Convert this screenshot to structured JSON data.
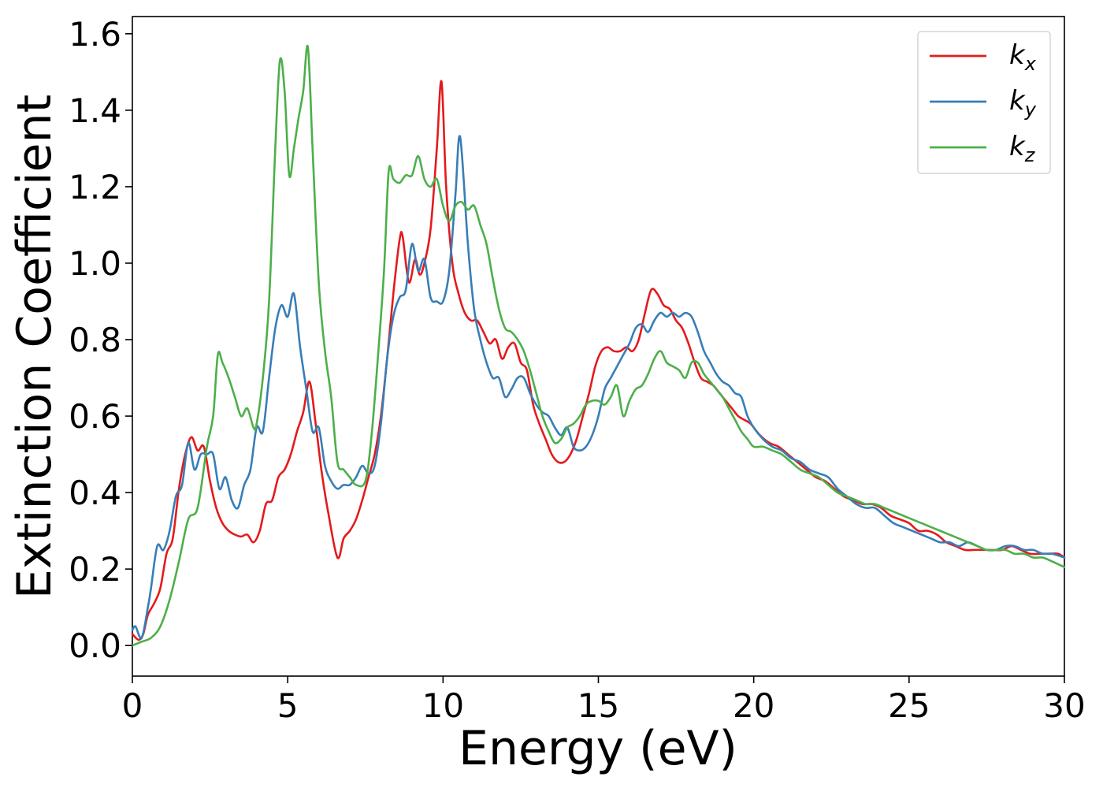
{
  "chart_data": {
    "type": "line",
    "title": "",
    "xlabel": "Energy (eV)",
    "ylabel": "Extinction Coefficient",
    "xlim": [
      0,
      30
    ],
    "ylim": [
      -0.08,
      1.645
    ],
    "xticks": [
      0,
      5,
      10,
      15,
      20,
      25,
      30
    ],
    "yticks": [
      0.0,
      0.2,
      0.4,
      0.6,
      0.8,
      1.0,
      1.2,
      1.4,
      1.6
    ],
    "xtick_labels": [
      "0",
      "5",
      "10",
      "15",
      "20",
      "25",
      "30"
    ],
    "ytick_labels": [
      "0.0",
      "0.2",
      "0.4",
      "0.6",
      "0.8",
      "1.0",
      "1.2",
      "1.4",
      "1.6"
    ],
    "grid": false,
    "legend_position": "top-right",
    "series": [
      {
        "name": "k",
        "subscript": "x",
        "color": "#e41a1c",
        "x": [
          0,
          0.2,
          0.35,
          0.5,
          0.7,
          0.9,
          1.1,
          1.3,
          1.5,
          1.7,
          1.9,
          2.1,
          2.3,
          2.5,
          2.7,
          2.9,
          3.1,
          3.3,
          3.5,
          3.7,
          3.9,
          4.1,
          4.3,
          4.5,
          4.7,
          4.9,
          5.1,
          5.3,
          5.5,
          5.7,
          5.9,
          6.1,
          6.3,
          6.6,
          6.8,
          7.0,
          7.2,
          7.4,
          7.6,
          7.8,
          8.0,
          8.2,
          8.4,
          8.6,
          8.7,
          8.9,
          9.1,
          9.25,
          9.4,
          9.6,
          9.8,
          9.95,
          10.1,
          10.3,
          10.5,
          10.7,
          10.9,
          11.1,
          11.3,
          11.5,
          11.7,
          11.9,
          12.1,
          12.3,
          12.5,
          12.7,
          12.9,
          13.1,
          13.3,
          13.5,
          13.7,
          13.9,
          14.1,
          14.3,
          14.5,
          14.7,
          14.9,
          15.1,
          15.3,
          15.5,
          15.7,
          15.9,
          16.1,
          16.3,
          16.5,
          16.7,
          16.9,
          17.1,
          17.3,
          17.5,
          17.7,
          17.9,
          18.1,
          18.3,
          18.5,
          18.7,
          18.9,
          19.1,
          19.3,
          19.5,
          19.7,
          19.9,
          20.2,
          20.5,
          20.8,
          21.1,
          21.4,
          21.7,
          22.0,
          22.3,
          22.6,
          22.9,
          23.2,
          23.5,
          23.8,
          24.1,
          24.4,
          24.7,
          25.0,
          25.3,
          25.6,
          25.9,
          26.2,
          26.5,
          26.8,
          27.1,
          27.4,
          27.7,
          28.0,
          28.3,
          28.6,
          28.9,
          29.2,
          29.5,
          29.8,
          30.0
        ],
        "y": [
          0.03,
          0.015,
          0.03,
          0.08,
          0.11,
          0.15,
          0.24,
          0.28,
          0.41,
          0.5,
          0.545,
          0.51,
          0.52,
          0.43,
          0.36,
          0.32,
          0.3,
          0.29,
          0.285,
          0.29,
          0.27,
          0.3,
          0.37,
          0.38,
          0.44,
          0.46,
          0.5,
          0.56,
          0.61,
          0.69,
          0.58,
          0.45,
          0.35,
          0.23,
          0.28,
          0.3,
          0.33,
          0.38,
          0.44,
          0.5,
          0.6,
          0.75,
          0.92,
          1.06,
          1.07,
          0.95,
          1.01,
          0.97,
          1.0,
          1.09,
          1.3,
          1.475,
          1.2,
          1.0,
          0.92,
          0.87,
          0.85,
          0.85,
          0.82,
          0.79,
          0.8,
          0.75,
          0.78,
          0.79,
          0.74,
          0.72,
          0.63,
          0.58,
          0.54,
          0.5,
          0.48,
          0.48,
          0.5,
          0.54,
          0.6,
          0.66,
          0.73,
          0.77,
          0.78,
          0.77,
          0.77,
          0.78,
          0.77,
          0.8,
          0.87,
          0.93,
          0.92,
          0.89,
          0.88,
          0.85,
          0.83,
          0.79,
          0.74,
          0.7,
          0.69,
          0.68,
          0.66,
          0.64,
          0.62,
          0.6,
          0.59,
          0.58,
          0.55,
          0.53,
          0.52,
          0.5,
          0.48,
          0.46,
          0.44,
          0.43,
          0.41,
          0.39,
          0.38,
          0.37,
          0.37,
          0.36,
          0.34,
          0.33,
          0.32,
          0.3,
          0.3,
          0.29,
          0.27,
          0.26,
          0.25,
          0.25,
          0.25,
          0.25,
          0.25,
          0.26,
          0.25,
          0.24,
          0.24,
          0.24,
          0.24,
          0.23
        ]
      },
      {
        "name": "k",
        "subscript": "y",
        "color": "#377eb8",
        "x": [
          0,
          0.1,
          0.3,
          0.5,
          0.6,
          0.8,
          1.0,
          1.2,
          1.4,
          1.6,
          1.8,
          2.0,
          2.2,
          2.4,
          2.6,
          2.8,
          3.0,
          3.2,
          3.4,
          3.6,
          3.8,
          4.0,
          4.2,
          4.4,
          4.6,
          4.8,
          5.0,
          5.2,
          5.4,
          5.6,
          5.8,
          6.0,
          6.2,
          6.4,
          6.6,
          6.8,
          7.0,
          7.2,
          7.4,
          7.6,
          7.8,
          8.0,
          8.2,
          8.4,
          8.6,
          8.8,
          9.0,
          9.2,
          9.4,
          9.6,
          9.8,
          10.0,
          10.2,
          10.4,
          10.55,
          10.8,
          11.0,
          11.2,
          11.4,
          11.6,
          11.8,
          12.0,
          12.2,
          12.4,
          12.6,
          12.8,
          13.0,
          13.2,
          13.4,
          13.6,
          13.8,
          14.0,
          14.2,
          14.4,
          14.6,
          14.8,
          15.0,
          15.2,
          15.4,
          15.6,
          15.8,
          16.0,
          16.2,
          16.4,
          16.6,
          16.8,
          17.0,
          17.2,
          17.4,
          17.6,
          17.8,
          18.0,
          18.2,
          18.4,
          18.6,
          18.8,
          19.0,
          19.2,
          19.4,
          19.6,
          19.8,
          20.0,
          20.3,
          20.6,
          20.9,
          21.2,
          21.5,
          21.8,
          22.1,
          22.4,
          22.7,
          23.0,
          23.3,
          23.6,
          23.9,
          24.2,
          24.5,
          24.8,
          25.1,
          25.4,
          25.7,
          26.0,
          26.3,
          26.6,
          26.9,
          27.2,
          27.5,
          27.8,
          28.1,
          28.4,
          28.7,
          29.0,
          29.3,
          29.6,
          30.0
        ],
        "y": [
          0.04,
          0.05,
          0.02,
          0.1,
          0.15,
          0.26,
          0.25,
          0.3,
          0.39,
          0.42,
          0.53,
          0.46,
          0.5,
          0.5,
          0.5,
          0.41,
          0.44,
          0.38,
          0.36,
          0.42,
          0.46,
          0.57,
          0.56,
          0.7,
          0.83,
          0.89,
          0.86,
          0.92,
          0.78,
          0.67,
          0.56,
          0.57,
          0.47,
          0.43,
          0.41,
          0.42,
          0.42,
          0.44,
          0.47,
          0.45,
          0.47,
          0.58,
          0.75,
          0.86,
          0.91,
          0.93,
          1.05,
          0.98,
          1.01,
          0.91,
          0.9,
          0.9,
          0.98,
          1.18,
          1.33,
          1.05,
          0.88,
          0.8,
          0.74,
          0.7,
          0.7,
          0.65,
          0.67,
          0.7,
          0.7,
          0.66,
          0.63,
          0.61,
          0.6,
          0.57,
          0.55,
          0.57,
          0.52,
          0.51,
          0.52,
          0.55,
          0.6,
          0.67,
          0.7,
          0.73,
          0.76,
          0.79,
          0.83,
          0.84,
          0.82,
          0.85,
          0.87,
          0.86,
          0.87,
          0.86,
          0.87,
          0.86,
          0.82,
          0.77,
          0.74,
          0.71,
          0.69,
          0.68,
          0.66,
          0.65,
          0.6,
          0.57,
          0.54,
          0.52,
          0.51,
          0.49,
          0.48,
          0.46,
          0.45,
          0.44,
          0.41,
          0.39,
          0.37,
          0.36,
          0.36,
          0.34,
          0.32,
          0.31,
          0.3,
          0.29,
          0.28,
          0.27,
          0.27,
          0.26,
          0.27,
          0.26,
          0.25,
          0.25,
          0.26,
          0.26,
          0.25,
          0.25,
          0.24,
          0.24,
          0.23
        ]
      },
      {
        "name": "k",
        "subscript": "z",
        "color": "#4daf4a",
        "x": [
          0,
          0.3,
          0.6,
          0.9,
          1.2,
          1.5,
          1.8,
          2.1,
          2.4,
          2.6,
          2.75,
          2.9,
          3.1,
          3.3,
          3.5,
          3.7,
          3.9,
          4.0,
          4.2,
          4.4,
          4.6,
          4.75,
          4.9,
          5.05,
          5.2,
          5.35,
          5.5,
          5.65,
          5.8,
          6.0,
          6.2,
          6.4,
          6.6,
          6.8,
          7.0,
          7.2,
          7.5,
          7.7,
          7.9,
          8.1,
          8.25,
          8.4,
          8.6,
          8.8,
          9.0,
          9.2,
          9.4,
          9.6,
          9.8,
          10.0,
          10.2,
          10.4,
          10.6,
          10.8,
          11.0,
          11.2,
          11.4,
          11.6,
          11.8,
          12.0,
          12.2,
          12.4,
          12.6,
          12.8,
          13.0,
          13.2,
          13.4,
          13.6,
          13.8,
          14.0,
          14.2,
          14.4,
          14.6,
          14.8,
          15.0,
          15.2,
          15.4,
          15.6,
          15.8,
          16.0,
          16.2,
          16.4,
          16.6,
          16.8,
          17.0,
          17.2,
          17.4,
          17.6,
          17.8,
          18.0,
          18.2,
          18.4,
          18.6,
          18.8,
          19.0,
          19.2,
          19.4,
          19.6,
          19.8,
          20.0,
          20.3,
          20.6,
          20.9,
          21.2,
          21.5,
          21.8,
          22.1,
          22.4,
          22.7,
          23.0,
          23.3,
          23.6,
          23.9,
          24.2,
          24.5,
          24.8,
          25.1,
          25.4,
          25.7,
          26.0,
          26.3,
          26.6,
          26.9,
          27.2,
          27.5,
          27.8,
          28.1,
          28.4,
          28.7,
          29.0,
          29.3,
          29.6,
          30.0
        ],
        "y": [
          0.0,
          0.01,
          0.02,
          0.05,
          0.12,
          0.22,
          0.33,
          0.36,
          0.52,
          0.6,
          0.76,
          0.74,
          0.7,
          0.65,
          0.6,
          0.62,
          0.57,
          0.58,
          0.7,
          0.9,
          1.3,
          1.53,
          1.45,
          1.23,
          1.3,
          1.38,
          1.45,
          1.565,
          1.3,
          0.95,
          0.77,
          0.65,
          0.48,
          0.46,
          0.44,
          0.42,
          0.43,
          0.55,
          0.75,
          0.98,
          1.24,
          1.22,
          1.21,
          1.23,
          1.23,
          1.28,
          1.22,
          1.2,
          1.22,
          1.15,
          1.11,
          1.15,
          1.16,
          1.14,
          1.15,
          1.1,
          1.05,
          0.96,
          0.88,
          0.83,
          0.82,
          0.8,
          0.77,
          0.72,
          0.66,
          0.6,
          0.56,
          0.53,
          0.54,
          0.57,
          0.58,
          0.6,
          0.63,
          0.64,
          0.64,
          0.63,
          0.65,
          0.68,
          0.6,
          0.64,
          0.67,
          0.68,
          0.71,
          0.75,
          0.77,
          0.74,
          0.73,
          0.72,
          0.7,
          0.74,
          0.74,
          0.71,
          0.69,
          0.67,
          0.65,
          0.62,
          0.59,
          0.56,
          0.54,
          0.52,
          0.52,
          0.51,
          0.5,
          0.48,
          0.46,
          0.45,
          0.44,
          0.42,
          0.4,
          0.39,
          0.38,
          0.37,
          0.37,
          0.36,
          0.35,
          0.34,
          0.33,
          0.32,
          0.31,
          0.3,
          0.29,
          0.28,
          0.27,
          0.26,
          0.25,
          0.25,
          0.25,
          0.24,
          0.24,
          0.23,
          0.23,
          0.22,
          0.205
        ]
      }
    ]
  }
}
